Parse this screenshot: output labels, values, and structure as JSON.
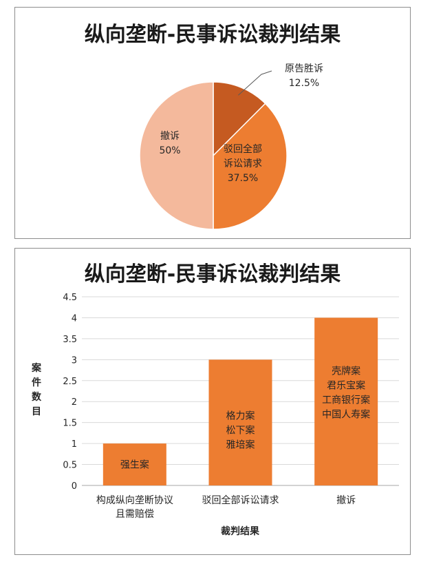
{
  "pie": {
    "title": "纵向垄断-民事诉讼裁判结果",
    "chart_data": {
      "type": "pie",
      "title": "纵向垄断-民事诉讼裁判结果",
      "slices": [
        {
          "label": "原告胜诉",
          "value": 12.5,
          "display": "12.5%",
          "color": "#c55a21"
        },
        {
          "label": "驳回全部诉讼请求",
          "value": 37.5,
          "display": "37.5%",
          "color": "#ed7d31"
        },
        {
          "label": "撤诉",
          "value": 50,
          "display": "50%",
          "color": "#f4b99c"
        }
      ]
    },
    "labels": {
      "winning_line1": "原告胜诉",
      "winning_pct": "12.5%",
      "rejected_line1": "驳回全部",
      "rejected_line2": "诉讼请求",
      "rejected_pct": "37.5%",
      "withdrawn_line1": "撤诉",
      "withdrawn_pct": "50%"
    }
  },
  "bar": {
    "title": "纵向垄断-民事诉讼裁判结果",
    "chart_data": {
      "type": "bar",
      "title": "纵向垄断-民事诉讼裁判结果",
      "xlabel": "裁判结果",
      "ylabel": "案件数目",
      "ylim": [
        0,
        4.5
      ],
      "yticks": [
        "0",
        "0.5",
        "1",
        "1.5",
        "2",
        "2.5",
        "3",
        "3.5",
        "4",
        "4.5"
      ],
      "grid": true,
      "categories": [
        "构成纵向垄断协议且需赔偿",
        "驳回全部诉讼请求",
        "撤诉"
      ],
      "values": [
        1,
        3,
        4
      ],
      "bar_color": "#ed7d31",
      "annotations": [
        [
          "强生案"
        ],
        [
          "格力案",
          "松下案",
          "雅培案"
        ],
        [
          "壳牌案",
          "君乐宝案",
          "工商银行案",
          "中国人寿案"
        ]
      ]
    },
    "category_lines": [
      [
        "构成纵向垄断协议",
        "且需赔偿"
      ],
      [
        "驳回全部诉讼请求"
      ],
      [
        "撤诉"
      ]
    ],
    "ylabel_chars": [
      "案",
      "件",
      "数",
      "目"
    ],
    "xlabel": "裁判结果"
  }
}
